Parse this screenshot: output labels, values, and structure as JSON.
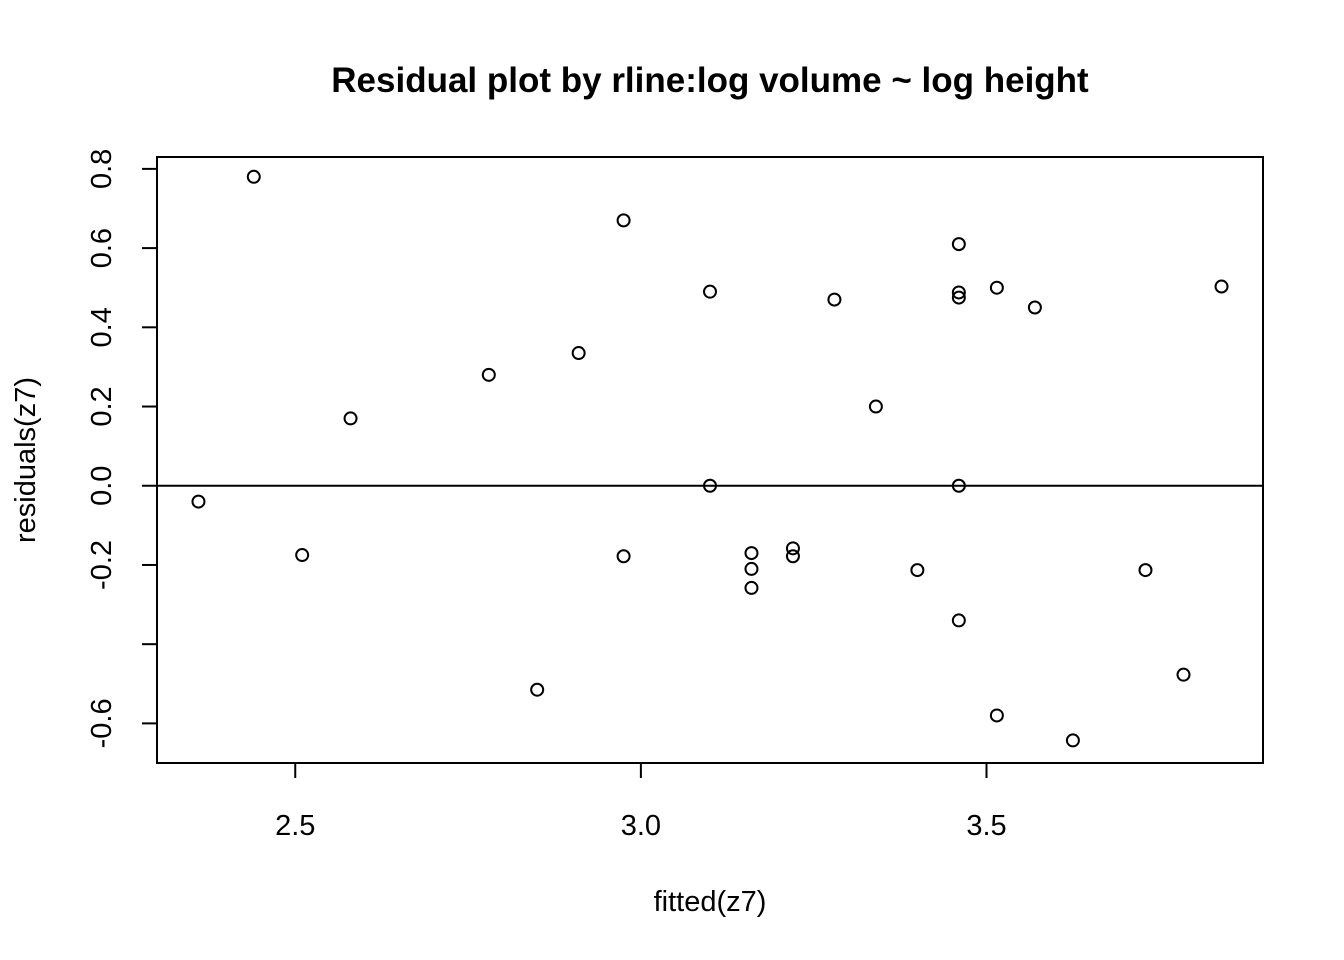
{
  "chart_data": {
    "type": "scatter",
    "title": "Residual plot by rline:log volume ~ log height",
    "xlabel": "fitted(z7)",
    "ylabel": "residuals(z7)",
    "xlim": [
      2.3,
      3.9
    ],
    "ylim": [
      -0.7,
      0.83
    ],
    "x_ticks": [
      {
        "value": 2.5,
        "label": "2.5"
      },
      {
        "value": 3.0,
        "label": "3.0"
      },
      {
        "value": 3.5,
        "label": "3.5"
      }
    ],
    "y_ticks": [
      {
        "value": -0.6,
        "label": "-0.6"
      },
      {
        "value": -0.4,
        "label": ""
      },
      {
        "value": -0.2,
        "label": "-0.2"
      },
      {
        "value": 0.0,
        "label": "0.0"
      },
      {
        "value": 0.2,
        "label": "0.2"
      },
      {
        "value": 0.4,
        "label": "0.4"
      },
      {
        "value": 0.6,
        "label": "0.6"
      },
      {
        "value": 0.8,
        "label": "0.8"
      }
    ],
    "reference_line": {
      "y": 0
    },
    "grid": false,
    "points": [
      {
        "x": 2.36,
        "y": -0.04
      },
      {
        "x": 2.44,
        "y": 0.78
      },
      {
        "x": 2.51,
        "y": -0.175
      },
      {
        "x": 2.58,
        "y": 0.17
      },
      {
        "x": 2.78,
        "y": 0.28
      },
      {
        "x": 2.85,
        "y": -0.515
      },
      {
        "x": 2.91,
        "y": 0.335
      },
      {
        "x": 2.975,
        "y": 0.67
      },
      {
        "x": 2.975,
        "y": -0.178
      },
      {
        "x": 3.1,
        "y": 0.49
      },
      {
        "x": 3.1,
        "y": 0.0
      },
      {
        "x": 3.16,
        "y": -0.17
      },
      {
        "x": 3.16,
        "y": -0.21
      },
      {
        "x": 3.16,
        "y": -0.258
      },
      {
        "x": 3.22,
        "y": -0.158
      },
      {
        "x": 3.22,
        "y": -0.178
      },
      {
        "x": 3.28,
        "y": 0.47
      },
      {
        "x": 3.34,
        "y": 0.2
      },
      {
        "x": 3.4,
        "y": -0.213
      },
      {
        "x": 3.46,
        "y": 0.61
      },
      {
        "x": 3.46,
        "y": 0.488
      },
      {
        "x": 3.46,
        "y": 0.475
      },
      {
        "x": 3.46,
        "y": 0.0
      },
      {
        "x": 3.46,
        "y": -0.34
      },
      {
        "x": 3.515,
        "y": 0.5
      },
      {
        "x": 3.515,
        "y": -0.58
      },
      {
        "x": 3.57,
        "y": 0.45
      },
      {
        "x": 3.625,
        "y": -0.643
      },
      {
        "x": 3.73,
        "y": -0.213
      },
      {
        "x": 3.785,
        "y": -0.477
      },
      {
        "x": 3.84,
        "y": 0.503
      }
    ]
  }
}
